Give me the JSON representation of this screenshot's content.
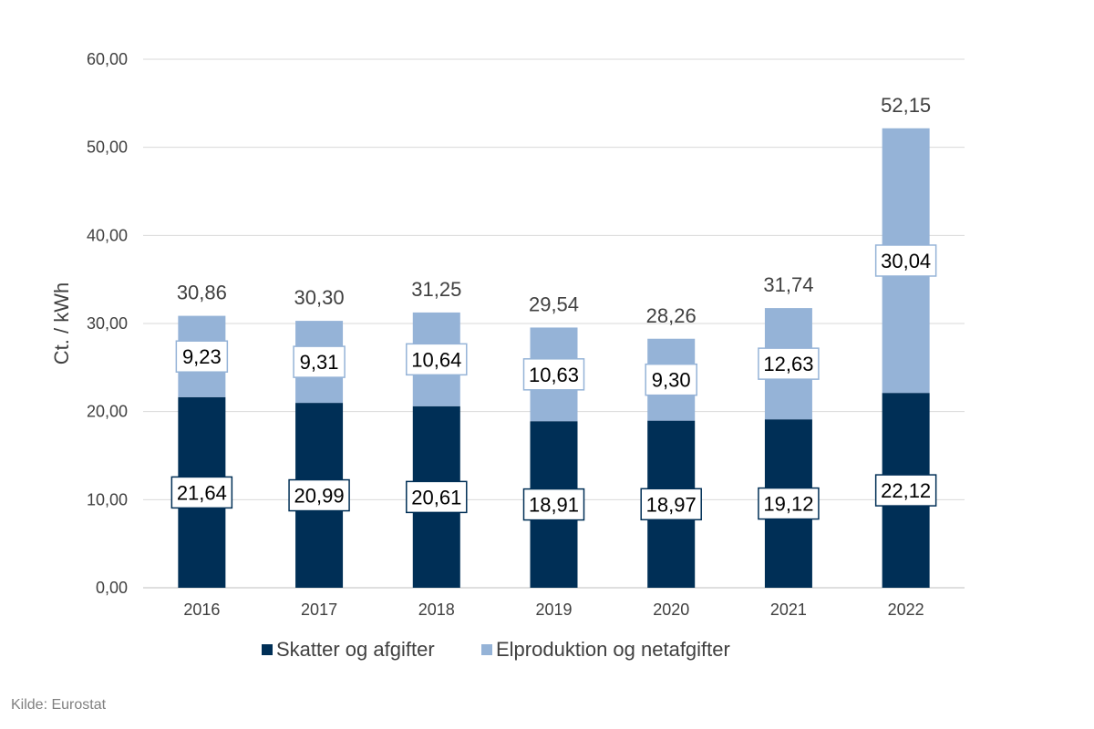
{
  "chart_data": {
    "type": "bar",
    "stacked": true,
    "categories": [
      "2016",
      "2017",
      "2018",
      "2019",
      "2020",
      "2021",
      "2022"
    ],
    "series": [
      {
        "name": "Skatter og afgifter",
        "color": "#002f56",
        "values": [
          21.64,
          20.99,
          20.61,
          18.91,
          18.97,
          19.12,
          22.12
        ],
        "labels": [
          "21,64",
          "20,99",
          "20,61",
          "18,91",
          "18,97",
          "19,12",
          "22,12"
        ]
      },
      {
        "name": "Elproduktion og netafgifter",
        "color": "#95b3d7",
        "values": [
          9.23,
          9.31,
          10.64,
          10.63,
          9.3,
          12.63,
          30.04
        ],
        "labels": [
          "9,23",
          "9,31",
          "10,64",
          "10,63",
          "9,30",
          "12,63",
          "30,04"
        ]
      }
    ],
    "totals": [
      30.86,
      30.3,
      31.25,
      29.54,
      28.26,
      31.74,
      52.15
    ],
    "total_labels": [
      "30,86",
      "30,30",
      "31,25",
      "29,54",
      "28,26",
      "31,74",
      "52,15"
    ],
    "ylabel": "Ct. / kWh",
    "ylim": [
      0,
      60
    ],
    "yticks": [
      "0,00",
      "10,00",
      "20,00",
      "30,00",
      "40,00",
      "50,00",
      "60,00"
    ],
    "grid": true,
    "legend_position": "bottom"
  },
  "source_note": "Kilde: Eurostat"
}
